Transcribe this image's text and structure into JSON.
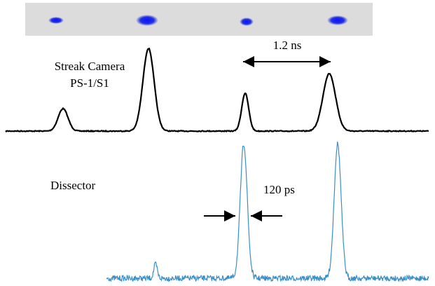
{
  "labels": {
    "streak_camera": "Streak Camera",
    "streak_model": "PS-1/S1",
    "period": "1.2 ns",
    "dissector": "Dissector",
    "width": "120 ps"
  }
}
